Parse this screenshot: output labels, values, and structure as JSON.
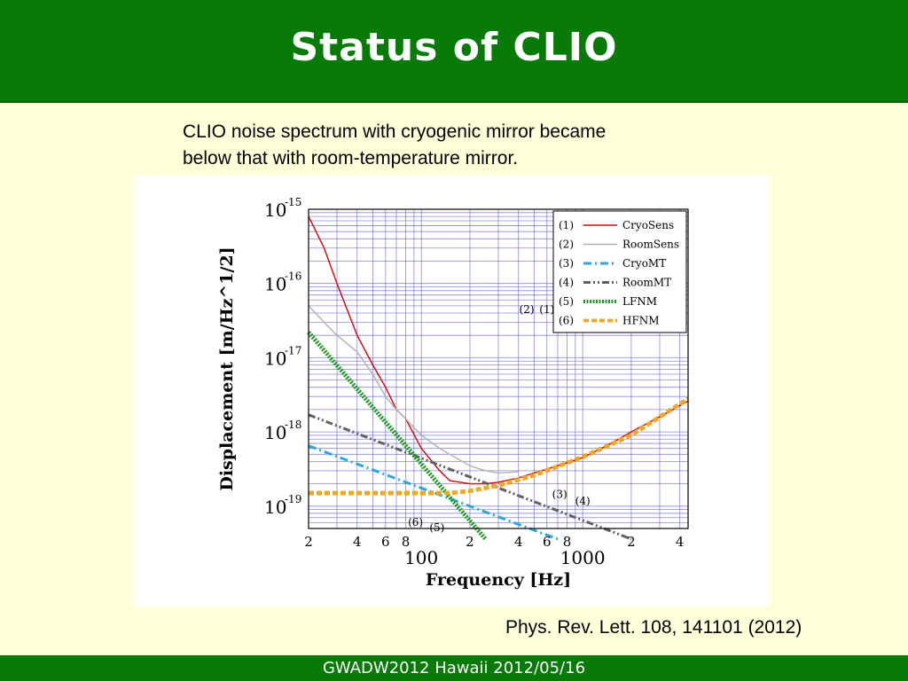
{
  "slide": {
    "title": "Status of CLIO",
    "caption": "CLIO noise spectrum with cryogenic mirror became\nbelow that with room-temperature mirror.",
    "reference": "Phys. Rev. Lett. 108, 141101 (2012)",
    "footer": "GWADW2012 Hawaii 2012/05/16"
  },
  "colors": {
    "header_bg": "#087a08",
    "slide_bg": "#ffffd9",
    "CryoSens": "#e00000",
    "RoomSens": "#b0b0b0",
    "CryoMT": "#2aa6e0",
    "RoomMT": "#606060",
    "LFNM": "#1f9a1f",
    "HFNM": "#f0a820"
  },
  "chart_data": {
    "type": "line",
    "x_scale": "log",
    "y_scale": "log",
    "xlim": [
      20,
      4500
    ],
    "ylim": [
      5e-20,
      1e-15
    ],
    "grid": true,
    "xlabel": "Frequency [Hz]",
    "ylabel": "Displacement [m/Hz^1/2]",
    "x_ticks": [
      {
        "value": 20,
        "label": "2"
      },
      {
        "value": 40,
        "label": "4"
      },
      {
        "value": 60,
        "label": "6"
      },
      {
        "value": 80,
        "label": "8"
      },
      {
        "value": 100,
        "label": "100"
      },
      {
        "value": 200,
        "label": "2"
      },
      {
        "value": 400,
        "label": "4"
      },
      {
        "value": 600,
        "label": "6"
      },
      {
        "value": 800,
        "label": "8"
      },
      {
        "value": 1000,
        "label": "1000"
      },
      {
        "value": 2000,
        "label": "2"
      },
      {
        "value": 4000,
        "label": "4"
      }
    ],
    "y_ticks": [
      {
        "value": 1e-15,
        "base": "10",
        "exp": "-15"
      },
      {
        "value": 1e-16,
        "base": "10",
        "exp": "-16"
      },
      {
        "value": 1e-17,
        "base": "10",
        "exp": "-17"
      },
      {
        "value": 1e-18,
        "base": "10",
        "exp": "-18"
      },
      {
        "value": 1e-19,
        "base": "10",
        "exp": "-19"
      }
    ],
    "legend_position": "top-right",
    "series": [
      {
        "id": "1",
        "name": "CryoSens",
        "style": "solid",
        "x": [
          20,
          25,
          30,
          40,
          50,
          60,
          70,
          80,
          100,
          130,
          150,
          200,
          250,
          300,
          400,
          500,
          700,
          1000,
          1500,
          2000,
          3000,
          4500
        ],
        "y": [
          8e-16,
          3e-16,
          1e-16,
          2e-17,
          8e-18,
          4e-18,
          2e-18,
          1.5e-18,
          6e-19,
          3e-19,
          2.2e-19,
          2e-19,
          2e-19,
          2.1e-19,
          2.4e-19,
          2.8e-19,
          3.5e-19,
          4.5e-19,
          7e-19,
          1e-18,
          1.6e-18,
          2.6e-18
        ]
      },
      {
        "id": "2",
        "name": "RoomSens",
        "style": "solid",
        "x": [
          20,
          25,
          30,
          40,
          50,
          60,
          70,
          80,
          100,
          130,
          150,
          200,
          250,
          300,
          400
        ],
        "y": [
          5e-17,
          3e-17,
          2e-17,
          1.2e-17,
          6e-18,
          3e-18,
          2e-18,
          1.5e-18,
          9e-19,
          6e-19,
          5e-19,
          3.5e-19,
          3e-19,
          2.8e-19,
          2.9e-19
        ]
      },
      {
        "id": "3",
        "name": "CryoMT",
        "style": "dashdot",
        "x": [
          20,
          700
        ],
        "y": [
          6.5e-19,
          3.6e-20
        ]
      },
      {
        "id": "4",
        "name": "RoomMT",
        "style": "dashdotdot",
        "x": [
          20,
          2000
        ],
        "y": [
          1.7e-18,
          3.6e-20
        ]
      },
      {
        "id": "5",
        "name": "LFNM",
        "style": "dotted-thick",
        "x": [
          20,
          250
        ],
        "y": [
          2.2e-17,
          3.6e-20
        ]
      },
      {
        "id": "6",
        "name": "HFNM",
        "style": "dashed-thick",
        "x": [
          20,
          150,
          200,
          300,
          500,
          1000,
          2000,
          4500
        ],
        "y": [
          1.5e-19,
          1.5e-19,
          1.6e-19,
          1.9e-19,
          2.6e-19,
          4.6e-19,
          9e-19,
          2.8e-18
        ]
      }
    ],
    "annotations": [
      {
        "label": "(1)",
        "x": 600,
        "y": 4e-17
      },
      {
        "label": "(2)",
        "x": 450,
        "y": 4e-17
      },
      {
        "label": "(3)",
        "x": 720,
        "y": 1.3e-19
      },
      {
        "label": "(4)",
        "x": 1000,
        "y": 1.05e-19
      },
      {
        "label": "(5)",
        "x": 125,
        "y": 4.6e-20
      },
      {
        "label": "(6)",
        "x": 92,
        "y": 5.4e-20
      }
    ]
  }
}
